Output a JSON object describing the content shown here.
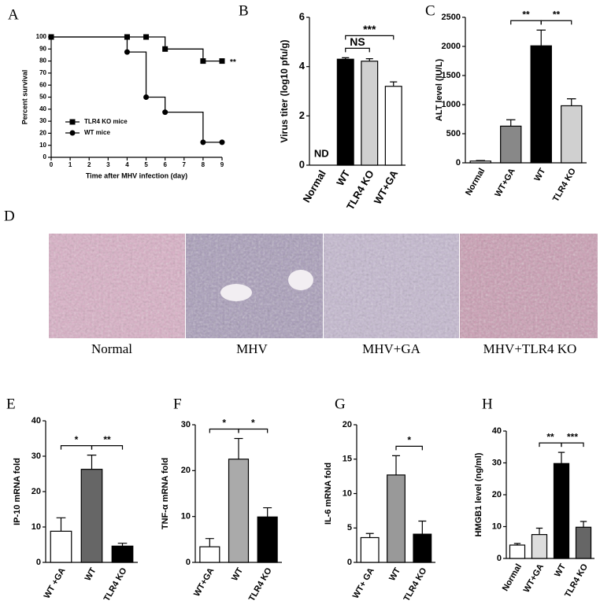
{
  "chart_data": [
    {
      "type": "line",
      "label": "A",
      "xlabel": "Time after MHV infection (day)",
      "ylabel": "Percent survival",
      "x": [
        0,
        4,
        5,
        6,
        8,
        9
      ],
      "xlim": [
        0,
        9
      ],
      "xticks": [
        0,
        1,
        2,
        3,
        4,
        5,
        6,
        7,
        8,
        9
      ],
      "ylim": [
        0,
        100
      ],
      "yticks": [
        0,
        10,
        20,
        30,
        40,
        50,
        60,
        70,
        80,
        90,
        100
      ],
      "series": [
        {
          "name": "TLR4 KO mice",
          "color": "#000000",
          "marker": "square",
          "values": [
            100,
            100,
            100,
            90,
            80,
            80
          ]
        },
        {
          "name": "WT mice",
          "color": "#000000",
          "marker": "circle",
          "values": [
            100,
            87.5,
            50,
            37.5,
            12.5,
            12.5
          ]
        }
      ],
      "legend": "lower left",
      "annotations": [
        {
          "text": "**"
        }
      ]
    },
    {
      "type": "bar",
      "label": "B",
      "ylabel": "Virus titer  (log10 pfu/g)",
      "categories": [
        "Normal",
        "WT",
        "TLR4 KO",
        "WT+GA"
      ],
      "values": [
        null,
        4.3,
        4.22,
        3.2
      ],
      "errors": [
        null,
        0.06,
        0.1,
        0.18
      ],
      "value_labels": [
        "ND",
        null,
        null,
        null
      ],
      "colors": [
        "#ffffff",
        "#000000",
        "#d0d0d0",
        "#ffffff"
      ],
      "ylim": [
        0,
        6
      ],
      "yticks": [
        0,
        2,
        4,
        6
      ],
      "annotations": [
        {
          "text": "NS",
          "from": 1,
          "to": 2
        },
        {
          "text": "***",
          "from": 1,
          "to": 3
        }
      ]
    },
    {
      "type": "bar",
      "label": "C",
      "ylabel": "ALT level (IU/L)",
      "categories": [
        "Normal",
        "WT+GA",
        "WT",
        "TLR4 KO"
      ],
      "values": [
        30,
        630,
        2010,
        980
      ],
      "errors": [
        10,
        110,
        270,
        120
      ],
      "colors": [
        "#ffffff",
        "#888888",
        "#000000",
        "#d0d0d0"
      ],
      "ylim": [
        0,
        2500
      ],
      "yticks": [
        0,
        500,
        1000,
        1500,
        2000,
        2500
      ],
      "annotations": [
        {
          "text": "**",
          "from": 1,
          "to": 2
        },
        {
          "text": "**",
          "from": 2,
          "to": 3
        }
      ]
    },
    {
      "type": "bar",
      "label": "E",
      "ylabel": "IP-10 mRNA fold",
      "categories": [
        "WT +GA",
        "WT",
        "TLR4 KO"
      ],
      "values": [
        8.8,
        26.3,
        4.6
      ],
      "errors": [
        3.8,
        4,
        0.8
      ],
      "colors": [
        "#ffffff",
        "#666666",
        "#000000"
      ],
      "ylim": [
        0,
        40
      ],
      "yticks": [
        0,
        10,
        20,
        30,
        40
      ],
      "annotations": [
        {
          "text": "*",
          "from": 0,
          "to": 1
        },
        {
          "text": "**",
          "from": 1,
          "to": 2
        }
      ]
    },
    {
      "type": "bar",
      "label": "F",
      "ylabel": "TNF-α mRNA fold",
      "categories": [
        "WT+GA",
        "WT",
        "TLR4 KO"
      ],
      "values": [
        3.4,
        22.5,
        9.9
      ],
      "errors": [
        1.8,
        4.5,
        2
      ],
      "colors": [
        "#ffffff",
        "#aaaaaa",
        "#000000"
      ],
      "ylim": [
        0,
        30
      ],
      "yticks": [
        0,
        10,
        20,
        30
      ],
      "annotations": [
        {
          "text": "*",
          "from": 0,
          "to": 1
        },
        {
          "text": "*",
          "from": 1,
          "to": 2
        }
      ]
    },
    {
      "type": "bar",
      "label": "G",
      "ylabel": "IL-6 mRNA fold",
      "categories": [
        "WT+ GA",
        "WT",
        "TLR4 KO"
      ],
      "values": [
        3.6,
        12.7,
        4.1
      ],
      "errors": [
        0.6,
        2.8,
        1.9
      ],
      "colors": [
        "#ffffff",
        "#999999",
        "#000000"
      ],
      "ylim": [
        0,
        20
      ],
      "yticks": [
        0,
        5,
        10,
        15,
        20
      ],
      "annotations": [
        {
          "text": "*",
          "from": 1,
          "to": 2
        }
      ]
    },
    {
      "type": "bar",
      "label": "H",
      "ylabel": "HMGB1 level  (ng/ml)",
      "categories": [
        "Normal",
        "WT+GA",
        "WT",
        "TLR4 KO"
      ],
      "values": [
        4.2,
        7.5,
        29.8,
        9.8
      ],
      "errors": [
        0.5,
        2,
        3.5,
        1.8
      ],
      "colors": [
        "#ffffff",
        "#dddddd",
        "#000000",
        "#666666"
      ],
      "ylim": [
        0,
        40
      ],
      "yticks": [
        0,
        10,
        20,
        30,
        40
      ],
      "annotations": [
        {
          "text": "**",
          "from": 1,
          "to": 2
        },
        {
          "text": "***",
          "from": 2,
          "to": 3
        }
      ]
    }
  ],
  "histology": {
    "label": "D",
    "captions": [
      "Normal",
      "MHV",
      "MHV+GA",
      "MHV+TLR4 KO"
    ]
  }
}
